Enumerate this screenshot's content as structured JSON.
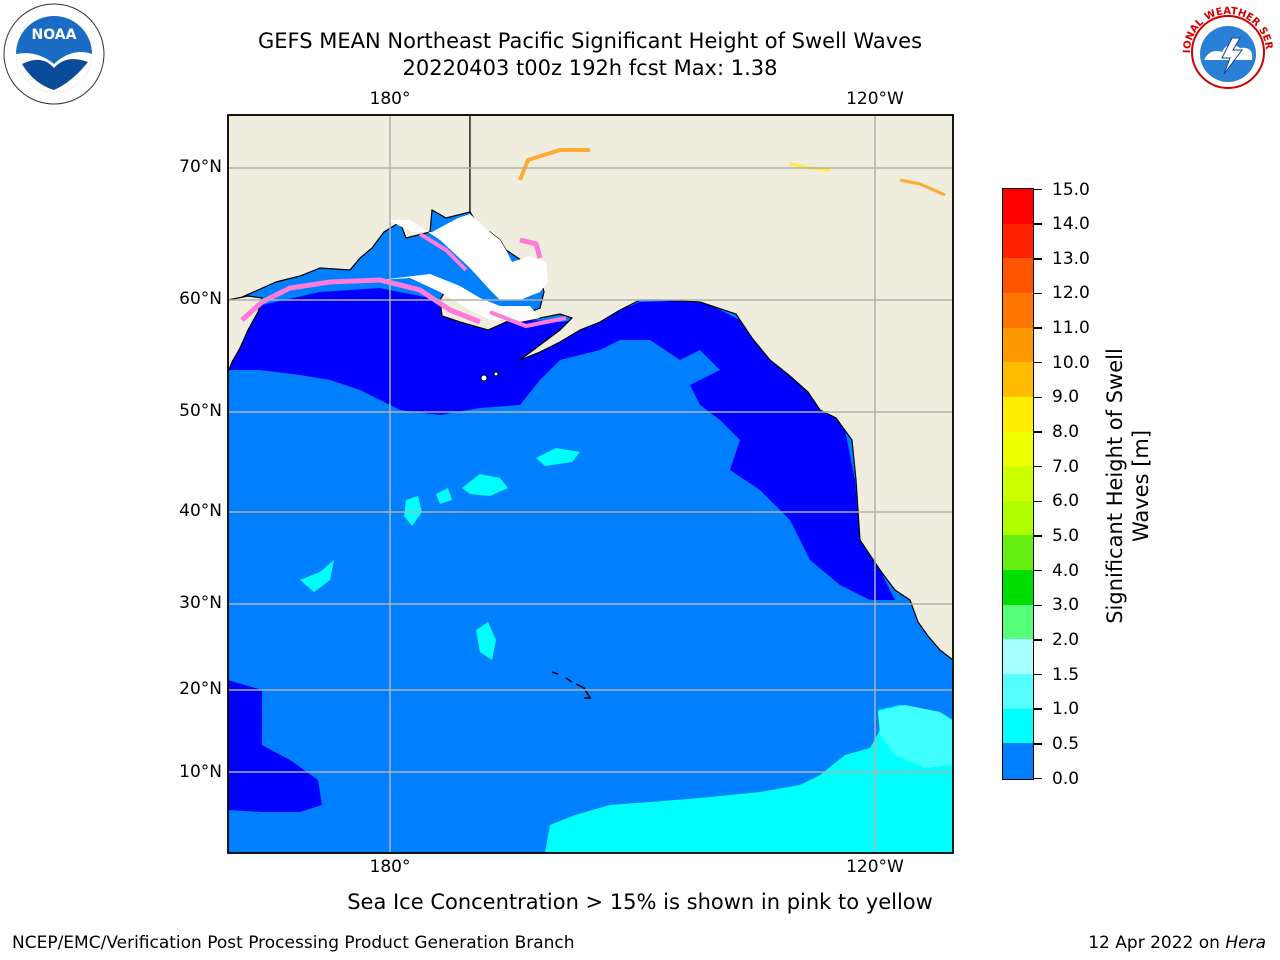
{
  "title": {
    "line1": "GEFS MEAN Northeast Pacific Significant Height of Swell Waves",
    "line2": "20220403 t00z 192h fcst   Max: 1.38"
  },
  "map": {
    "lat_labels": [
      "70°N",
      "60°N",
      "50°N",
      "40°N",
      "30°N",
      "20°N",
      "10°N"
    ],
    "lon_labels_top": [
      "180°",
      "120°W"
    ],
    "lon_labels_bottom": [
      "180°",
      "120°W"
    ],
    "colors": {
      "land": "#efedde",
      "ice_sea": "#ffffff",
      "band_0_0_5": "#0000ff",
      "band_0_5_1_0": "#0080ff",
      "band_1_0_1_5": "#00ffff",
      "band_1_5_2_0": "#40ffff",
      "grid": "#b0b0b0",
      "ice_pink": "#ff7ad9",
      "ice_orange": "#ffaa33",
      "ice_yellow": "#ffee33"
    }
  },
  "colorbar": {
    "title_line1": "Significant Height of Swell",
    "title_line2": "Waves [m]",
    "levels": [
      "15.0",
      "14.0",
      "13.0",
      "12.0",
      "11.0",
      "10.0",
      "9.0",
      "8.0",
      "7.0",
      "6.0",
      "5.0",
      "4.0",
      "3.0",
      "2.0",
      "1.5",
      "1.0",
      "0.5",
      "0.0"
    ],
    "segment_colors_top_to_bottom": [
      "#ff0000",
      "#ff2200",
      "#ff5500",
      "#ff7700",
      "#ff9900",
      "#ffbb00",
      "#ffee00",
      "#f0ff00",
      "#ccff00",
      "#b0ff00",
      "#66ee11",
      "#00dd00",
      "#55ff77",
      "#a8ffff",
      "#55ffff",
      "#00ffff",
      "#0080ff",
      "#0000ff"
    ]
  },
  "caption": "Sea Ice Concentration > 15% is shown in pink to yellow",
  "footer": {
    "left": "NCEP/EMC/Verification Post Processing Product Generation Branch",
    "right_prefix": "12 Apr 2022 on ",
    "right_host": "Hera"
  },
  "logos": {
    "noaa_text": "NOAA",
    "nws_text": "NATIONAL WEATHER SERVICE"
  }
}
